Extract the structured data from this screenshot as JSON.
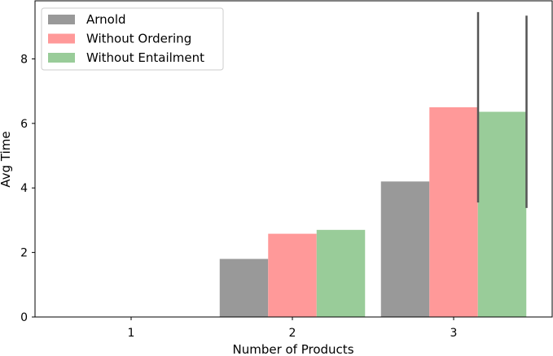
{
  "chart_data": {
    "type": "bar",
    "title": "",
    "xlabel": "Number of Products",
    "ylabel": "Avg Time",
    "categories": [
      "1",
      "2",
      "3"
    ],
    "ylim": [
      0,
      9.8
    ],
    "yticks": [
      0,
      2,
      4,
      6,
      8
    ],
    "grid": false,
    "legend_position": "top-left",
    "series": [
      {
        "name": "Arnold",
        "color": "#999999",
        "values": [
          0,
          1.8,
          4.2
        ],
        "errors": [
          null,
          null,
          null
        ]
      },
      {
        "name": "Without Ordering",
        "color": "#ff9999",
        "values": [
          0,
          2.58,
          6.5
        ],
        "errors": [
          null,
          null,
          2.95
        ]
      },
      {
        "name": "Without Entailment",
        "color": "#99cc99",
        "values": [
          0,
          2.7,
          6.36
        ],
        "errors": [
          null,
          null,
          2.98
        ]
      }
    ]
  }
}
